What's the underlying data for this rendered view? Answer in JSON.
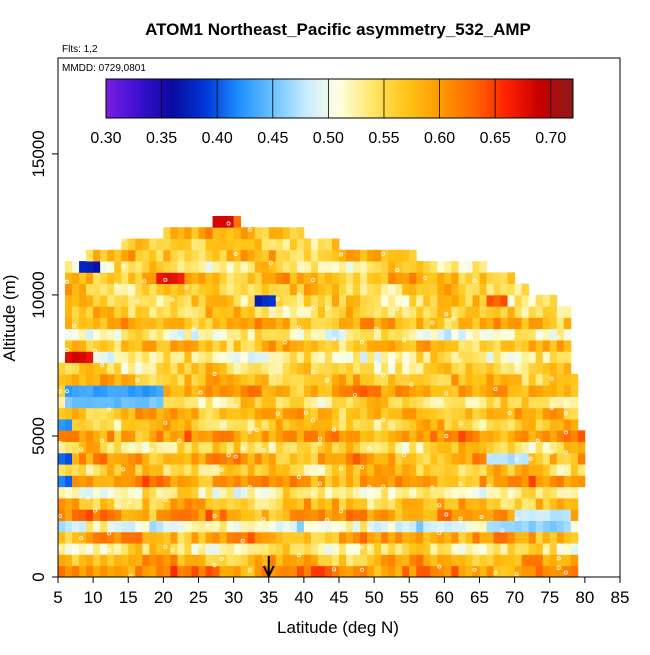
{
  "chart_data": {
    "type": "heatmap",
    "title": "ATOM1 Northeast_Pacific asymmetry_532_AMP",
    "flights_note": "Flts: 1,2",
    "date_note": "MMDD: 0729,0801",
    "xlabel": "Latitude (deg N)",
    "ylabel": "Altitude (m)",
    "xlim": [
      5,
      85
    ],
    "ylim": [
      0,
      18400
    ],
    "xticks": [
      5,
      10,
      15,
      20,
      25,
      30,
      35,
      40,
      45,
      50,
      55,
      60,
      65,
      70,
      75,
      80,
      85
    ],
    "yticks": [
      0,
      5000,
      10000,
      15000
    ],
    "colorbar": {
      "min": 0.3,
      "max": 0.72,
      "ticks": [
        "0.30",
        "0.35",
        "0.40",
        "0.45",
        "0.50",
        "0.55",
        "0.60",
        "0.65",
        "0.70"
      ],
      "colors": [
        "#7b1fe0",
        "#3a10d0",
        "#0a0a9e",
        "#0038d8",
        "#1e90ff",
        "#6cc2ff",
        "#c8ecff",
        "#ffffe0",
        "#ffe566",
        "#ffc418",
        "#ff9a00",
        "#ff6a00",
        "#ff2200",
        "#c80000",
        "#8b1a1a"
      ]
    },
    "marker": {
      "latitude": 35,
      "label": "arrow"
    },
    "layers": [
      {
        "alt": 200,
        "lat": [
          5,
          79
        ],
        "value": 0.61
      },
      {
        "alt": 600,
        "lat": [
          5,
          79
        ],
        "value": 0.58
      },
      {
        "alt": 1000,
        "lat": [
          5,
          79
        ],
        "value": 0.54
      },
      {
        "alt": 1400,
        "lat": [
          5,
          79
        ],
        "value": 0.59
      },
      {
        "alt": 1800,
        "lat": [
          5,
          79
        ],
        "value": 0.5
      },
      {
        "alt": 2200,
        "lat": [
          5,
          79
        ],
        "value": 0.6
      },
      {
        "alt": 2600,
        "lat": [
          5,
          79
        ],
        "value": 0.57
      },
      {
        "alt": 3000,
        "lat": [
          5,
          79
        ],
        "value": 0.53
      },
      {
        "alt": 3400,
        "lat": [
          5,
          80
        ],
        "value": 0.6
      },
      {
        "alt": 3800,
        "lat": [
          5,
          80
        ],
        "value": 0.56
      },
      {
        "alt": 4200,
        "lat": [
          5,
          80
        ],
        "value": 0.59
      },
      {
        "alt": 4600,
        "lat": [
          5,
          80
        ],
        "value": 0.55
      },
      {
        "alt": 5000,
        "lat": [
          5,
          80
        ],
        "value": 0.6
      },
      {
        "alt": 5400,
        "lat": [
          5,
          79
        ],
        "value": 0.56
      },
      {
        "alt": 5800,
        "lat": [
          5,
          79
        ],
        "value": 0.58
      },
      {
        "alt": 6200,
        "lat": [
          5,
          79
        ],
        "value": 0.55
      },
      {
        "alt": 6600,
        "lat": [
          5,
          79
        ],
        "value": 0.59
      },
      {
        "alt": 7000,
        "lat": [
          5,
          79
        ],
        "value": 0.57
      },
      {
        "alt": 7400,
        "lat": [
          5,
          78
        ],
        "value": 0.55
      },
      {
        "alt": 7800,
        "lat": [
          6,
          78
        ],
        "value": 0.53
      },
      {
        "alt": 8200,
        "lat": [
          6,
          78
        ],
        "value": 0.57
      },
      {
        "alt": 8600,
        "lat": [
          6,
          78
        ],
        "value": 0.52
      },
      {
        "alt": 9000,
        "lat": [
          6,
          78
        ],
        "value": 0.58
      },
      {
        "alt": 9400,
        "lat": [
          6,
          78
        ],
        "value": 0.56
      },
      {
        "alt": 9800,
        "lat": [
          6,
          76
        ],
        "value": 0.55
      },
      {
        "alt": 10200,
        "lat": [
          6,
          72
        ],
        "value": 0.56
      },
      {
        "alt": 10600,
        "lat": [
          6,
          70
        ],
        "value": 0.58
      },
      {
        "alt": 11000,
        "lat": [
          6,
          66
        ],
        "value": 0.54
      },
      {
        "alt": 11400,
        "lat": [
          9,
          56
        ],
        "value": 0.57
      },
      {
        "alt": 11800,
        "lat": [
          14,
          45
        ],
        "value": 0.56
      },
      {
        "alt": 12200,
        "lat": [
          20,
          40
        ],
        "value": 0.58
      },
      {
        "alt": 12600,
        "lat": [
          27,
          31
        ],
        "value": 0.63
      }
    ],
    "anomalies": [
      {
        "alt": 7800,
        "lat": [
          6,
          10
        ],
        "value": 0.68
      },
      {
        "alt": 6600,
        "lat": [
          6,
          20
        ],
        "value": 0.43
      },
      {
        "alt": 6200,
        "lat": [
          6,
          20
        ],
        "value": 0.45
      },
      {
        "alt": 5400,
        "lat": [
          5,
          7
        ],
        "value": 0.42
      },
      {
        "alt": 4200,
        "lat": [
          5,
          7
        ],
        "value": 0.4
      },
      {
        "alt": 3400,
        "lat": [
          5,
          7
        ],
        "value": 0.41
      },
      {
        "alt": 11000,
        "lat": [
          8,
          11
        ],
        "value": 0.37
      },
      {
        "alt": 10600,
        "lat": [
          19,
          23
        ],
        "value": 0.67
      },
      {
        "alt": 9800,
        "lat": [
          33,
          36
        ],
        "value": 0.38
      },
      {
        "alt": 9800,
        "lat": [
          66,
          69
        ],
        "value": 0.64
      },
      {
        "alt": 2200,
        "lat": [
          70,
          78
        ],
        "value": 0.48
      },
      {
        "alt": 1800,
        "lat": [
          66,
          78
        ],
        "value": 0.46
      },
      {
        "alt": 4200,
        "lat": [
          66,
          72
        ],
        "value": 0.47
      },
      {
        "alt": 12600,
        "lat": [
          27,
          30
        ],
        "value": 0.68
      }
    ]
  }
}
